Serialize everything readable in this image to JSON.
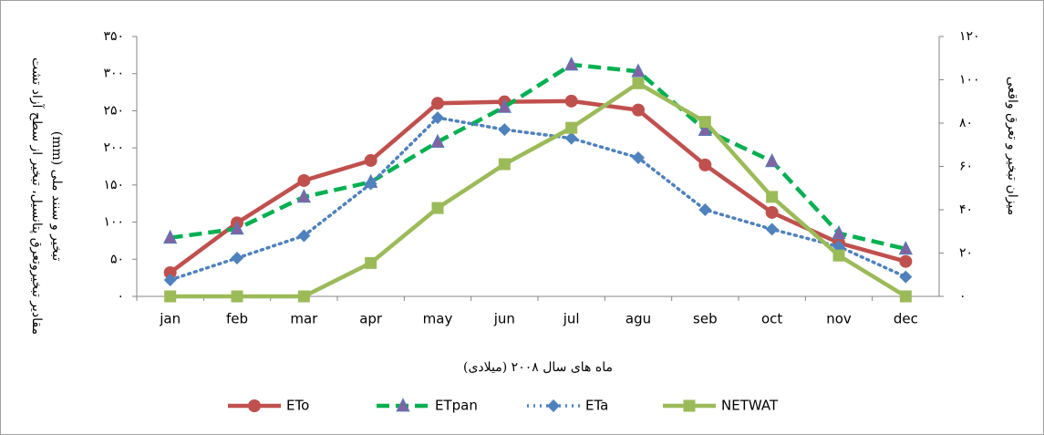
{
  "chart_data": {
    "type": "line",
    "x_label": "ماه های سال ۲۰۰۸ (میلادی)",
    "y_label": [
      "مقادیر تبخیروتعرق پتانسیل، تبخیر از سطح آزاد تشت",
      "تبخیر و سنند ملی (mm)"
    ],
    "y2_label": "میزان تبخیر و تعرق واقعی",
    "categories": [
      "jan",
      "feb",
      "mar",
      "apr",
      "may",
      "jun",
      "jul",
      "agu",
      "seb",
      "oct",
      "nov",
      "dec"
    ],
    "ylim": [
      0,
      350
    ],
    "yticks": [
      {
        "value": 0,
        "label": "۰"
      },
      {
        "value": 50,
        "label": "۵۰"
      },
      {
        "value": 100,
        "label": "۱۰۰"
      },
      {
        "value": 150,
        "label": "۱۵۰"
      },
      {
        "value": 200,
        "label": "۲۰۰"
      },
      {
        "value": 250,
        "label": "۲۵۰"
      },
      {
        "value": 300,
        "label": "۳۰۰"
      },
      {
        "value": 350,
        "label": "۳۵۰"
      }
    ],
    "y2lim": [
      0,
      120
    ],
    "y2ticks": [
      {
        "value": 0,
        "label": "۰"
      },
      {
        "value": 20,
        "label": "۲۰"
      },
      {
        "value": 40,
        "label": "۴۰"
      },
      {
        "value": 60,
        "label": "۶۰"
      },
      {
        "value": 80,
        "label": "۸۰"
      },
      {
        "value": 100,
        "label": "۱۰۰"
      },
      {
        "value": 120,
        "label": "۱۲۰"
      }
    ],
    "grid": false,
    "legend": "bottom",
    "series": [
      {
        "name": "ETo",
        "color": "#c0504d",
        "marker_color": "#c0504d",
        "marker": "circle",
        "dash": "solid",
        "values": [
          32,
          99,
          156,
          183,
          260,
          262,
          263,
          251,
          177,
          113,
          72,
          47
        ]
      },
      {
        "name": "ETpan",
        "color": "#00b050",
        "marker_color": "#8064a2",
        "marker": "triangle",
        "dash": "dashed",
        "values": [
          79,
          91,
          134,
          154,
          208,
          255,
          312,
          303,
          224,
          182,
          85,
          64
        ]
      },
      {
        "name": "ETa",
        "color": "#4f81bd",
        "marker_color": "#4f81bd",
        "marker": "diamond",
        "dash": "dotted",
        "axis": "y2",
        "values": [
          7.6,
          17.7,
          28,
          52,
          82.5,
          77,
          73,
          64,
          40,
          31,
          23,
          9
        ]
      },
      {
        "name": "NETWAT",
        "color": "#9bbb59",
        "marker_color": "#9bbb59",
        "marker": "square",
        "dash": "solid",
        "values": [
          0,
          0,
          0,
          45,
          119,
          178,
          227,
          287,
          235,
          134,
          55,
          0
        ]
      }
    ]
  }
}
